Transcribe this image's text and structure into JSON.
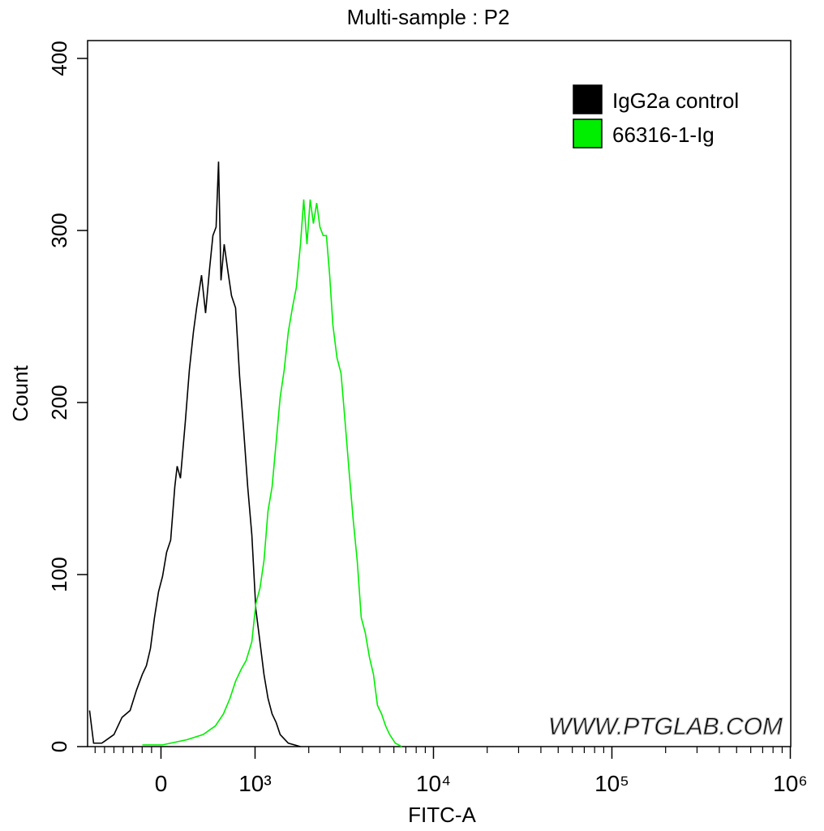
{
  "chart_data": {
    "type": "line",
    "title": "Multi-sample : P2",
    "x_label": "FITC-A",
    "y_label": "Count",
    "xscale": "biexponential",
    "xlim": [
      -780,
      1000000
    ],
    "xticks": [
      0,
      {
        "value": 1000,
        "label": "10³"
      },
      {
        "value": 10000,
        "label": "10⁴"
      },
      {
        "value": 100000,
        "label": "10⁵"
      },
      {
        "value": 1000000,
        "label": "10⁶"
      }
    ],
    "xminorticks": [
      -700,
      -600,
      -500,
      -400,
      -300,
      -200,
      -100,
      2000,
      3000,
      4000,
      5000,
      6000,
      7000,
      8000,
      9000,
      20000,
      30000,
      40000,
      50000,
      60000,
      70000,
      80000,
      90000,
      200000,
      300000,
      400000,
      500000,
      600000,
      700000,
      800000,
      900000
    ],
    "ylim": [
      0,
      400
    ],
    "yticks": [
      0,
      100,
      200,
      300,
      400
    ],
    "legend": "top-right",
    "watermark": "WWW.PTGLAB.COM",
    "series": [
      {
        "name": "IgG2a control",
        "color": "#000000",
        "x": [
          -759,
          -716,
          -629,
          -500,
          -414,
          -328,
          -259,
          -198,
          -155,
          -112,
          -69,
          -26,
          17,
          60,
          103,
          147,
          172,
          207,
          259,
          302,
          345,
          379,
          431,
          474,
          517,
          552,
          586,
          612,
          638,
          672,
          707,
          750,
          793,
          836,
          879,
          922,
          966,
          1010,
          1065,
          1122,
          1182,
          1246,
          1313,
          1383,
          1536,
          1797
        ],
        "values": [
          21,
          2,
          2,
          7,
          17,
          21,
          33,
          42,
          47,
          57,
          75,
          90,
          99,
          113,
          120,
          151,
          163,
          156,
          189,
          219,
          241,
          255,
          274,
          252,
          278,
          297,
          302,
          340,
          271,
          292,
          278,
          262,
          255,
          215,
          184,
          151,
          123,
          80,
          61,
          42,
          28,
          19,
          14,
          7,
          2,
          0
        ]
      },
      {
        "name": "66316-1-Ig",
        "color": "#00ee00",
        "x": [
          -198,
          17,
          276,
          448,
          578,
          664,
          733,
          793,
          853,
          905,
          966,
          1010,
          1065,
          1122,
          1182,
          1246,
          1313,
          1383,
          1457,
          1536,
          1619,
          1705,
          1797,
          1874,
          1954,
          2037,
          2124,
          2215,
          2310,
          2409,
          2512,
          2619,
          2731,
          2879,
          3033,
          3195,
          3366,
          3548,
          3738,
          3937,
          4150,
          4375,
          4610,
          4853,
          5117,
          5395,
          5682,
          6109,
          6648
        ],
        "values": [
          1,
          1,
          4,
          7,
          12,
          19,
          28,
          38,
          45,
          50,
          61,
          83,
          92,
          108,
          137,
          151,
          177,
          203,
          219,
          241,
          255,
          267,
          292,
          318,
          292,
          318,
          304,
          316,
          302,
          297,
          297,
          274,
          245,
          226,
          217,
          189,
          160,
          132,
          108,
          75,
          66,
          52,
          42,
          24,
          19,
          12,
          7,
          2,
          0
        ]
      }
    ]
  }
}
